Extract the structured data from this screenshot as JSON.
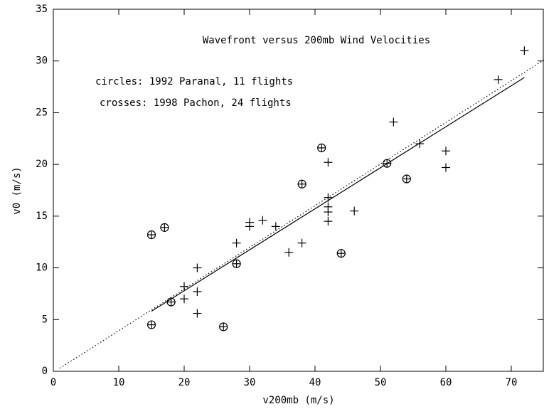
{
  "chart_data": {
    "type": "scatter",
    "title": "Wavefront versus 200mb Wind Velocities",
    "annotations": [
      "circles: 1992 Paranal, 11 flights",
      "crosses: 1998 Pachon, 24 flights"
    ],
    "xlabel": "v200mb (m/s)",
    "ylabel": "v0 (m/s)",
    "xlim": [
      0,
      75
    ],
    "ylim": [
      0,
      35
    ],
    "xticks": [
      0,
      10,
      20,
      30,
      40,
      50,
      60,
      70
    ],
    "yticks": [
      0,
      5,
      10,
      15,
      20,
      25,
      30,
      35
    ],
    "color": "#000000",
    "series": [
      {
        "marker": "circle-plus",
        "x": [
          15,
          17,
          15,
          18,
          26,
          28,
          38,
          41,
          44,
          51,
          54
        ],
        "values": [
          13.2,
          13.9,
          4.5,
          6.7,
          4.3,
          10.4,
          18.1,
          21.6,
          11.4,
          20.1,
          18.6
        ]
      },
      {
        "marker": "plus",
        "x": [
          20,
          20,
          22,
          22,
          22,
          28,
          30,
          30,
          32,
          34,
          36,
          38,
          42,
          42,
          42,
          42,
          42,
          46,
          52,
          56,
          60,
          60,
          68,
          72
        ],
        "values": [
          8.2,
          7.0,
          10.0,
          7.7,
          5.6,
          12.4,
          14.4,
          14.0,
          14.6,
          14.0,
          11.5,
          12.4,
          20.2,
          16.8,
          15.9,
          15.4,
          14.5,
          15.5,
          24.1,
          22.0,
          21.3,
          19.7,
          28.2,
          31.0
        ]
      }
    ],
    "lines": [
      {
        "style": "solid",
        "x": [
          15,
          72
        ],
        "values": [
          5.8,
          28.4
        ]
      },
      {
        "style": "dotted",
        "x": [
          1,
          75
        ],
        "values": [
          0.3,
          30.1
        ]
      }
    ]
  }
}
